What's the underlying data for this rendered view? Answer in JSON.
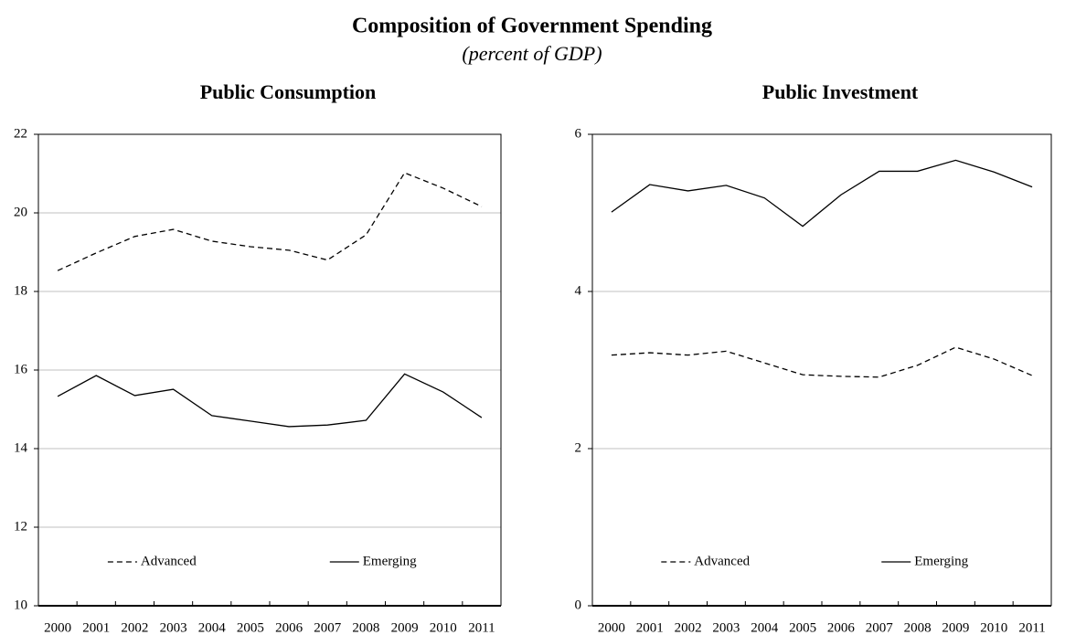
{
  "title": "Composition of Government Spending",
  "subtitle": "(percent of GDP)",
  "chart_data": [
    {
      "type": "line",
      "title": "Public Consumption",
      "categories": [
        "2000",
        "2001",
        "2002",
        "2003",
        "2004",
        "2005",
        "2006",
        "2007",
        "2008",
        "2009",
        "2010",
        "2011"
      ],
      "series": [
        {
          "name": "Advanced",
          "color": "#000000",
          "line_style": "dashed",
          "values": [
            18.53,
            18.98,
            19.4,
            19.58,
            19.28,
            19.14,
            19.05,
            18.8,
            19.44,
            21.02,
            20.63,
            20.16
          ]
        },
        {
          "name": "Emerging",
          "color": "#000000",
          "line_style": "solid",
          "values": [
            15.33,
            15.86,
            15.35,
            15.51,
            14.84,
            14.7,
            14.56,
            14.6,
            14.72,
            15.9,
            15.44,
            14.79
          ]
        }
      ],
      "ylim": [
        10,
        22
      ],
      "yticks": [
        10,
        12,
        14,
        16,
        18,
        20,
        22
      ],
      "grid": true,
      "legend": "bottom"
    },
    {
      "type": "line",
      "title": "Public Investment",
      "categories": [
        "2000",
        "2001",
        "2002",
        "2003",
        "2004",
        "2005",
        "2006",
        "2007",
        "2008",
        "2009",
        "2010",
        "2011"
      ],
      "series": [
        {
          "name": "Advanced",
          "color": "#000000",
          "line_style": "dashed",
          "values": [
            3.19,
            3.22,
            3.19,
            3.24,
            3.09,
            2.94,
            2.92,
            2.91,
            3.06,
            3.29,
            3.14,
            2.93
          ]
        },
        {
          "name": "Emerging",
          "color": "#000000",
          "line_style": "solid",
          "values": [
            5.01,
            5.36,
            5.28,
            5.35,
            5.19,
            4.83,
            5.23,
            5.53,
            5.53,
            5.67,
            5.52,
            5.33
          ]
        }
      ],
      "ylim": [
        0,
        6
      ],
      "yticks": [
        0,
        2,
        4,
        6
      ],
      "grid": true,
      "legend": "bottom"
    }
  ]
}
